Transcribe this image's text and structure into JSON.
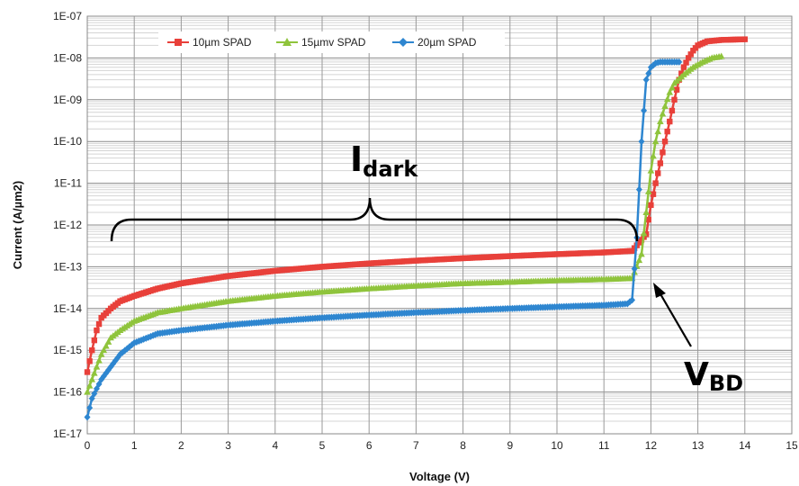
{
  "chart_data": {
    "type": "line",
    "xlabel": "Voltage (V)",
    "ylabel": "Current (A/µm2)",
    "xlim": [
      0,
      15
    ],
    "ylim": [
      1e-17,
      1e-07
    ],
    "y_scale": "log",
    "grid": true,
    "legend_position": "top",
    "x_ticks": [
      "0",
      "1",
      "2",
      "3",
      "4",
      "5",
      "6",
      "7",
      "8",
      "9",
      "10",
      "11",
      "12",
      "13",
      "14",
      "15"
    ],
    "y_ticks": [
      "1E-17",
      "1E-16",
      "1E-15",
      "1E-14",
      "1E-13",
      "1E-12",
      "1E-11",
      "1E-10",
      "1E-09",
      "1E-08",
      "1E-07"
    ],
    "series": [
      {
        "name": "10µm SPAD",
        "color": "#e8403a",
        "marker": "square",
        "x": [
          0,
          0.1,
          0.2,
          0.3,
          0.5,
          0.7,
          1,
          1.5,
          2,
          3,
          4,
          5,
          6,
          7,
          8,
          9,
          10,
          11,
          11.6,
          11.9,
          12.0,
          12.1,
          12.2,
          12.3,
          12.4,
          12.5,
          12.6,
          12.7,
          12.8,
          12.9,
          13.0,
          13.2,
          13.5,
          14.0
        ],
        "y": [
          3e-16,
          1e-15,
          3e-15,
          6e-15,
          1e-14,
          1.5e-14,
          2e-14,
          3e-14,
          4e-14,
          6e-14,
          8e-14,
          1e-13,
          1.2e-13,
          1.4e-13,
          1.6e-13,
          1.8e-13,
          2e-13,
          2.2e-13,
          2.4e-13,
          6e-13,
          3e-12,
          1e-11,
          3e-11,
          1e-10,
          3e-10,
          1e-09,
          3e-09,
          6e-09,
          1e-08,
          1.5e-08,
          2e-08,
          2.5e-08,
          2.7e-08,
          2.8e-08
        ]
      },
      {
        "name": "15µmv SPAD",
        "color": "#8fc43c",
        "marker": "triangle",
        "x": [
          0,
          0.1,
          0.2,
          0.3,
          0.5,
          0.7,
          1,
          1.5,
          2,
          3,
          4,
          5,
          6,
          7,
          8,
          9,
          10,
          11,
          11.6,
          11.8,
          11.9,
          12.0,
          12.1,
          12.2,
          12.3,
          12.4,
          12.5,
          12.7,
          12.9,
          13.1,
          13.3,
          13.5
        ],
        "y": [
          1e-16,
          2e-16,
          4e-16,
          8e-16,
          2e-15,
          3e-15,
          5e-15,
          8e-15,
          1e-14,
          1.5e-14,
          2e-14,
          2.5e-14,
          3e-14,
          3.5e-14,
          4e-14,
          4.3e-14,
          4.7e-14,
          5e-14,
          5.3e-14,
          2e-13,
          2e-12,
          2e-11,
          1e-10,
          3e-10,
          7e-10,
          1.5e-09,
          2.5e-09,
          4e-09,
          6e-09,
          8e-09,
          1e-08,
          1.1e-08
        ]
      },
      {
        "name": "20µm SPAD",
        "color": "#2e86d0",
        "marker": "diamond",
        "x": [
          0,
          0.1,
          0.2,
          0.3,
          0.5,
          0.7,
          1,
          1.5,
          2,
          3,
          4,
          5,
          6,
          7,
          8,
          9,
          10,
          11,
          11.5,
          11.6,
          11.7,
          11.8,
          11.9,
          12.0,
          12.1,
          12.2,
          12.4,
          12.6
        ],
        "y": [
          2.5e-17,
          7e-17,
          1.2e-16,
          2e-16,
          4e-16,
          8e-16,
          1.5e-15,
          2.5e-15,
          3e-15,
          4e-15,
          5e-15,
          6e-15,
          7e-15,
          8e-15,
          9e-15,
          1e-14,
          1.1e-14,
          1.2e-14,
          1.3e-14,
          1.6e-14,
          5e-13,
          1e-10,
          3e-09,
          6e-09,
          7.5e-09,
          8e-09,
          8e-09,
          8e-09
        ]
      }
    ],
    "annotations": [
      {
        "main": "I",
        "sub": "dark"
      },
      {
        "main": "V",
        "sub": "BD"
      }
    ]
  }
}
